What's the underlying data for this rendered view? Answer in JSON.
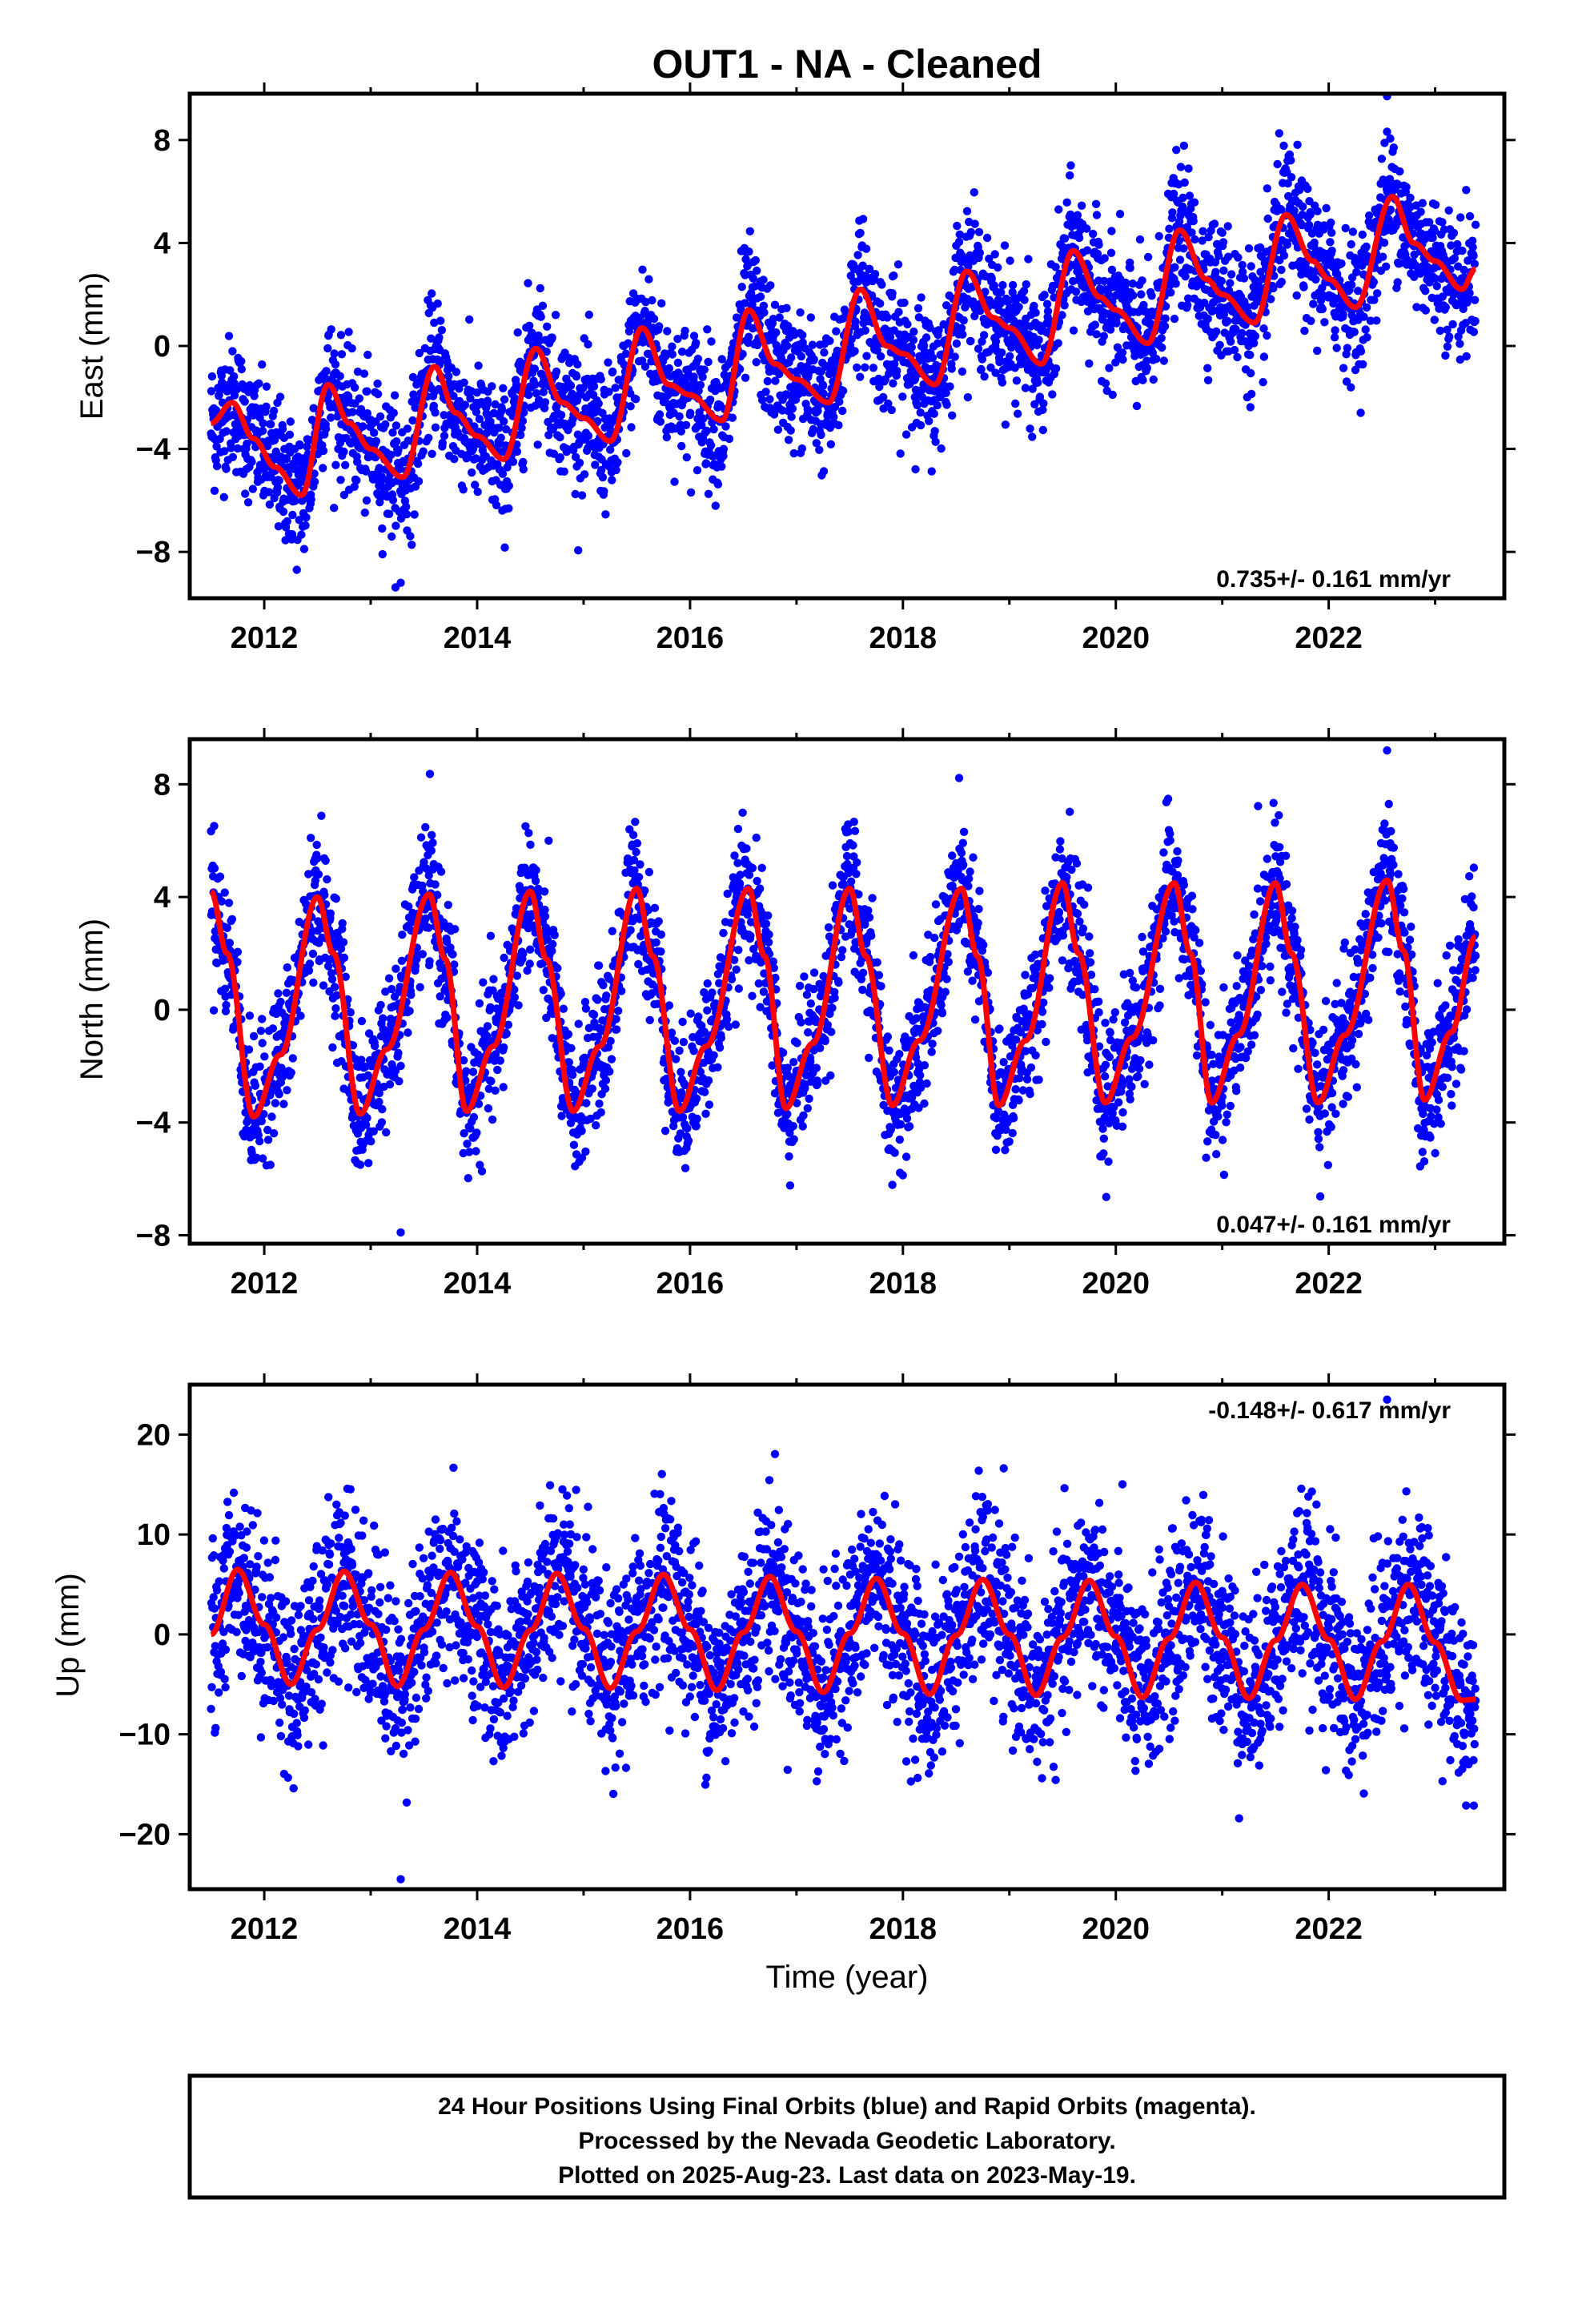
{
  "title": "OUT1  - NA - Cleaned",
  "colors": {
    "points": "#0000ff",
    "fit": "#ff0000",
    "frame": "#000000"
  },
  "xlabel": "Time (year)",
  "footer": {
    "line1": "24 Hour Positions Using Final Orbits (blue) and Rapid Orbits (magenta).",
    "line2": "Processed by the Nevada Geodetic Laboratory.",
    "line3": "Plotted on 2025-Aug-23. Last data on 2023-May-19."
  },
  "chart_data": [
    {
      "type": "scatter",
      "component": "East",
      "ylabel": "East (mm)",
      "xlim": [
        2011.3,
        2023.65
      ],
      "ylim": [
        -9.8,
        9.8
      ],
      "xticks": [
        2012,
        2014,
        2016,
        2018,
        2020,
        2022
      ],
      "yticks": [
        -8,
        -4,
        0,
        4,
        8
      ],
      "rate_label": "0.735+/- 0.161 mm/yr",
      "rate_position": "bottom-right",
      "x_range": [
        2011.5,
        2023.38
      ],
      "fit_knots": [
        [
          2011.5,
          -3.0
        ],
        [
          2011.7,
          -2.2
        ],
        [
          2011.9,
          -3.6
        ],
        [
          2012.1,
          -4.7
        ],
        [
          2012.35,
          -5.8
        ],
        [
          2012.6,
          -1.5
        ],
        [
          2012.8,
          -3.0
        ],
        [
          2013.0,
          -4.0
        ],
        [
          2013.3,
          -5.1
        ],
        [
          2013.6,
          -0.8
        ],
        [
          2013.8,
          -2.6
        ],
        [
          2014.0,
          -3.5
        ],
        [
          2014.25,
          -4.4
        ],
        [
          2014.55,
          -0.1
        ],
        [
          2014.8,
          -2.2
        ],
        [
          2015.0,
          -2.8
        ],
        [
          2015.25,
          -3.7
        ],
        [
          2015.55,
          0.7
        ],
        [
          2015.8,
          -1.5
        ],
        [
          2016.0,
          -1.9
        ],
        [
          2016.3,
          -2.9
        ],
        [
          2016.55,
          1.4
        ],
        [
          2016.8,
          -0.7
        ],
        [
          2017.0,
          -1.3
        ],
        [
          2017.3,
          -2.2
        ],
        [
          2017.6,
          2.2
        ],
        [
          2017.85,
          0.0
        ],
        [
          2018.0,
          -0.3
        ],
        [
          2018.3,
          -1.5
        ],
        [
          2018.6,
          2.9
        ],
        [
          2018.85,
          1.1
        ],
        [
          2019.0,
          0.7
        ],
        [
          2019.3,
          -0.7
        ],
        [
          2019.6,
          3.7
        ],
        [
          2019.85,
          1.9
        ],
        [
          2020.0,
          1.4
        ],
        [
          2020.3,
          0.1
        ],
        [
          2020.6,
          4.5
        ],
        [
          2020.85,
          2.6
        ],
        [
          2021.0,
          2.0
        ],
        [
          2021.3,
          0.9
        ],
        [
          2021.6,
          5.1
        ],
        [
          2021.85,
          3.3
        ],
        [
          2022.0,
          2.6
        ],
        [
          2022.25,
          1.5
        ],
        [
          2022.6,
          5.8
        ],
        [
          2022.8,
          4.0
        ],
        [
          2023.0,
          3.3
        ],
        [
          2023.25,
          2.2
        ],
        [
          2023.38,
          3.0
        ]
      ],
      "scatter_sd": 1.3,
      "max_outlier": 9.7,
      "min_outlier": -9.2
    },
    {
      "type": "scatter",
      "component": "North",
      "ylabel": "North (mm)",
      "xlim": [
        2011.3,
        2023.65
      ],
      "ylim": [
        -8.3,
        9.6
      ],
      "xticks": [
        2012,
        2014,
        2016,
        2018,
        2020,
        2022
      ],
      "yticks": [
        -8,
        -4,
        0,
        4,
        8
      ],
      "rate_label": "0.047+/- 0.161 mm/yr",
      "rate_position": "bottom-right",
      "x_range": [
        2011.5,
        2023.38
      ],
      "fit_knots": [
        [
          2011.5,
          4.2
        ],
        [
          2011.65,
          2.0
        ],
        [
          2011.9,
          -3.8
        ],
        [
          2012.15,
          -1.6
        ],
        [
          2012.5,
          4.0
        ],
        [
          2012.65,
          2.0
        ],
        [
          2012.9,
          -3.7
        ],
        [
          2013.15,
          -1.4
        ],
        [
          2013.55,
          4.1
        ],
        [
          2013.7,
          1.8
        ],
        [
          2013.9,
          -3.6
        ],
        [
          2014.15,
          -1.3
        ],
        [
          2014.5,
          4.2
        ],
        [
          2014.65,
          1.8
        ],
        [
          2014.9,
          -3.6
        ],
        [
          2015.15,
          -1.3
        ],
        [
          2015.5,
          4.3
        ],
        [
          2015.65,
          1.9
        ],
        [
          2015.9,
          -3.6
        ],
        [
          2016.15,
          -1.3
        ],
        [
          2016.55,
          4.3
        ],
        [
          2016.7,
          1.9
        ],
        [
          2016.9,
          -3.5
        ],
        [
          2017.15,
          -1.2
        ],
        [
          2017.5,
          4.3
        ],
        [
          2017.65,
          1.9
        ],
        [
          2017.9,
          -3.4
        ],
        [
          2018.15,
          -1.1
        ],
        [
          2018.55,
          4.3
        ],
        [
          2018.7,
          1.9
        ],
        [
          2018.9,
          -3.4
        ],
        [
          2019.15,
          -1.1
        ],
        [
          2019.5,
          4.5
        ],
        [
          2019.65,
          2.0
        ],
        [
          2019.9,
          -3.3
        ],
        [
          2020.15,
          -1.0
        ],
        [
          2020.55,
          4.5
        ],
        [
          2020.7,
          2.0
        ],
        [
          2020.9,
          -3.3
        ],
        [
          2021.15,
          -0.9
        ],
        [
          2021.5,
          4.5
        ],
        [
          2021.65,
          2.0
        ],
        [
          2021.9,
          -3.3
        ],
        [
          2022.15,
          -0.9
        ],
        [
          2022.55,
          4.6
        ],
        [
          2022.7,
          2.1
        ],
        [
          2022.9,
          -3.2
        ],
        [
          2023.15,
          -0.8
        ],
        [
          2023.38,
          2.6
        ]
      ],
      "scatter_sd": 1.2,
      "max_outlier": 9.2,
      "min_outlier": -7.9
    },
    {
      "type": "scatter",
      "component": "Up",
      "ylabel": "Up (mm)",
      "xlim": [
        2011.3,
        2023.65
      ],
      "ylim": [
        -25.5,
        25
      ],
      "xticks": [
        2012,
        2014,
        2016,
        2018,
        2020,
        2022
      ],
      "yticks": [
        -20,
        -10,
        0,
        10,
        20
      ],
      "rate_label": "-0.148+/- 0.617 mm/yr",
      "rate_position": "top-right",
      "x_range": [
        2011.5,
        2023.38
      ],
      "fit_knots": [
        [
          2011.5,
          0.0
        ],
        [
          2011.75,
          6.5
        ],
        [
          2012.0,
          1.0
        ],
        [
          2012.25,
          -5.0
        ],
        [
          2012.5,
          0.5
        ],
        [
          2012.75,
          6.3
        ],
        [
          2013.0,
          1.0
        ],
        [
          2013.25,
          -5.2
        ],
        [
          2013.5,
          0.5
        ],
        [
          2013.75,
          6.2
        ],
        [
          2014.0,
          0.8
        ],
        [
          2014.25,
          -5.3
        ],
        [
          2014.5,
          0.4
        ],
        [
          2014.75,
          6.1
        ],
        [
          2015.0,
          0.6
        ],
        [
          2015.25,
          -5.4
        ],
        [
          2015.5,
          0.3
        ],
        [
          2015.75,
          6.0
        ],
        [
          2016.0,
          0.5
        ],
        [
          2016.25,
          -5.6
        ],
        [
          2016.5,
          0.2
        ],
        [
          2016.75,
          5.8
        ],
        [
          2017.0,
          0.3
        ],
        [
          2017.25,
          -5.8
        ],
        [
          2017.5,
          0.1
        ],
        [
          2017.75,
          5.6
        ],
        [
          2018.0,
          0.1
        ],
        [
          2018.25,
          -6.0
        ],
        [
          2018.5,
          -0.1
        ],
        [
          2018.75,
          5.5
        ],
        [
          2019.0,
          0.0
        ],
        [
          2019.25,
          -6.1
        ],
        [
          2019.5,
          -0.3
        ],
        [
          2019.75,
          5.4
        ],
        [
          2020.0,
          -0.2
        ],
        [
          2020.25,
          -6.3
        ],
        [
          2020.5,
          -0.4
        ],
        [
          2020.75,
          5.2
        ],
        [
          2021.0,
          -0.3
        ],
        [
          2021.25,
          -6.4
        ],
        [
          2021.5,
          -0.6
        ],
        [
          2021.75,
          5.0
        ],
        [
          2022.0,
          -0.5
        ],
        [
          2022.25,
          -6.5
        ],
        [
          2022.5,
          -0.7
        ],
        [
          2022.75,
          5.0
        ],
        [
          2023.0,
          -0.8
        ],
        [
          2023.25,
          -6.6
        ],
        [
          2023.38,
          -6.5
        ]
      ],
      "scatter_sd": 4.5,
      "max_outlier": 23.5,
      "min_outlier": -24.5
    }
  ]
}
